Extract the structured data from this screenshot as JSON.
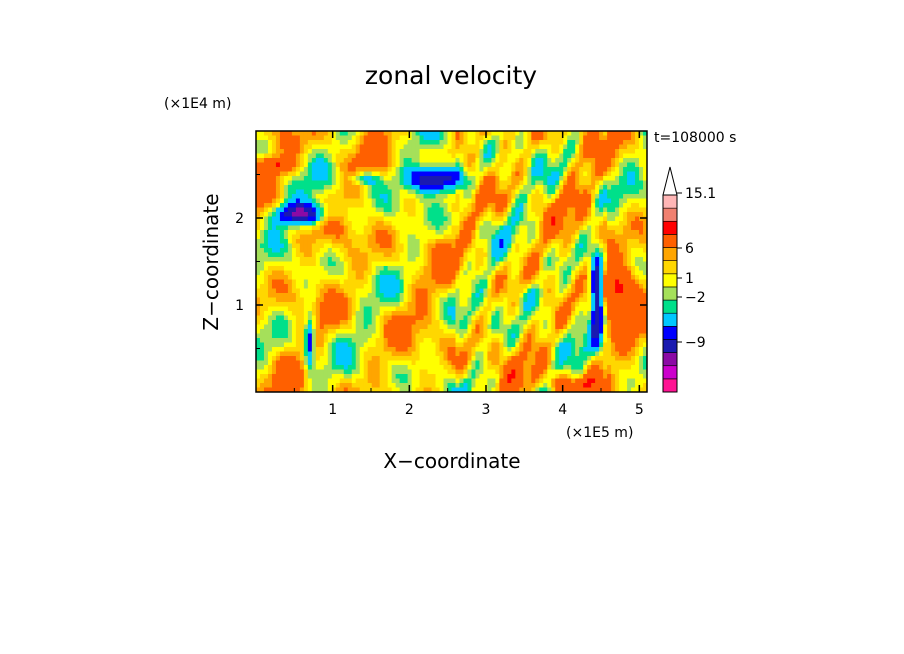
{
  "chart_data": {
    "type": "heatmap",
    "title": "zonal velocity",
    "xlabel": "X−coordinate",
    "ylabel": "Z−coordinate",
    "x_unit": "(×1E5 m)",
    "y_unit": "(×1E4 m)",
    "time_label": "t=108000 s",
    "xlim": [
      0,
      5.1
    ],
    "ylim": [
      0,
      3.0
    ],
    "x_ticks": [
      {
        "value": 1,
        "label": "1"
      },
      {
        "value": 2,
        "label": "2"
      },
      {
        "value": 3,
        "label": "3"
      },
      {
        "value": 4,
        "label": "4"
      },
      {
        "value": 5,
        "label": "5"
      }
    ],
    "y_ticks": [
      {
        "value": 1,
        "label": "1"
      },
      {
        "value": 2,
        "label": "2"
      }
    ],
    "colorbar": {
      "colors": [
        "#ff1493",
        "#cc00cc",
        "#8b0aa5",
        "#1a1ab0",
        "#0000ff",
        "#00c8ff",
        "#00e08a",
        "#a5e05a",
        "#ffff00",
        "#ffd700",
        "#ffa500",
        "#ff6000",
        "#ff0000",
        "#f08070",
        "#ffb6b6"
      ],
      "extend_top": true,
      "labels": [
        {
          "level": "15.1",
          "label": "15.1"
        },
        {
          "level": "6",
          "label": "6"
        },
        {
          "level": "1",
          "label": "1"
        },
        {
          "level": "-2",
          "label": "−2"
        },
        {
          "level": "-9",
          "label": "−9"
        }
      ]
    },
    "features": [
      {
        "type": "blob",
        "x": 0.6,
        "z": 2.05,
        "rx": 0.35,
        "rz": 0.12,
        "value": -10
      },
      {
        "type": "blob",
        "x": 2.35,
        "z": 2.45,
        "rx": 0.35,
        "rz": 0.15,
        "value": -11
      },
      {
        "type": "blob",
        "x": 1.4,
        "z": 2.45,
        "rx": 0.18,
        "rz": 0.08,
        "value": -5
      },
      {
        "type": "blob",
        "x": 4.45,
        "z": 1.1,
        "rx": 0.08,
        "rz": 0.45,
        "value": -12
      },
      {
        "type": "blob",
        "x": 0.7,
        "z": 0.6,
        "rx": 0.07,
        "rz": 0.3,
        "value": -8
      },
      {
        "type": "blob",
        "x": 4.7,
        "z": 1.2,
        "rx": 0.25,
        "rz": 0.3,
        "value": 8
      },
      {
        "type": "blob",
        "x": 0.25,
        "z": 2.6,
        "rx": 0.25,
        "rz": 0.1,
        "value": 5
      },
      {
        "type": "blob",
        "x": 4.1,
        "z": 0.1,
        "rx": 0.3,
        "rz": 0.1,
        "value": 4
      },
      {
        "type": "blob",
        "x": 3.6,
        "z": 1.1,
        "rx": 0.35,
        "rz": 0.2,
        "value": -3
      }
    ]
  }
}
